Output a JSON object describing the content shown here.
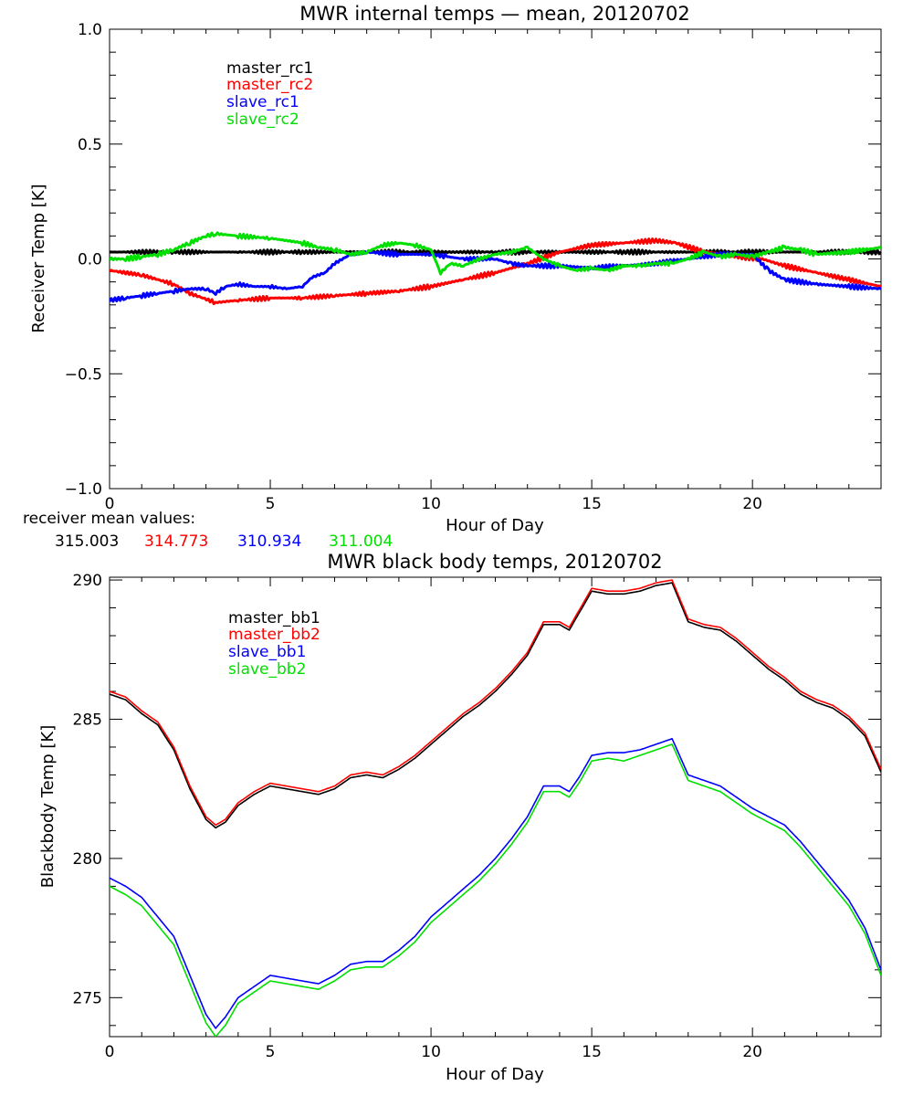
{
  "chart_data": [
    {
      "type": "line",
      "title": "MWR internal temps — mean, 20120702",
      "xlabel": "Hour of Day",
      "ylabel": "Receiver Temp [K]",
      "xlim": [
        0,
        24
      ],
      "ylim": [
        -1.0,
        1.0
      ],
      "xticks": [
        0,
        5,
        10,
        15,
        20
      ],
      "xtick_labels": [
        "0",
        "5",
        "10",
        "15",
        "20"
      ],
      "yticks": [
        -1.0,
        -0.5,
        0.0,
        0.5,
        1.0
      ],
      "ytick_labels": [
        "−1.0",
        "−0.5",
        "0.0",
        "0.5",
        "1.0"
      ],
      "grid": false,
      "legend": "top-left",
      "series": [
        {
          "name": "master_rc1",
          "color": "#000000",
          "x": [
            0,
            2,
            4,
            6,
            8,
            10,
            12,
            14,
            16,
            18,
            20,
            22,
            24
          ],
          "y": [
            0.03,
            0.03,
            0.03,
            0.03,
            0.03,
            0.03,
            0.03,
            0.03,
            0.03,
            0.03,
            0.03,
            0.03,
            0.03
          ]
        },
        {
          "name": "master_rc2",
          "color": "#ff0000",
          "x": [
            0,
            1,
            2,
            2.5,
            3.3,
            4,
            5,
            6,
            7,
            8,
            9,
            10,
            11,
            12,
            13,
            14,
            15,
            16,
            17,
            17.6,
            18.5,
            19.5,
            20.3,
            21,
            22,
            23,
            24
          ],
          "y": [
            -0.05,
            -0.07,
            -0.11,
            -0.15,
            -0.19,
            -0.18,
            -0.17,
            -0.17,
            -0.16,
            -0.15,
            -0.14,
            -0.12,
            -0.09,
            -0.06,
            -0.02,
            0.03,
            0.06,
            0.07,
            0.08,
            0.07,
            0.03,
            0.01,
            0.0,
            -0.03,
            -0.06,
            -0.09,
            -0.12
          ]
        },
        {
          "name": "slave_rc1",
          "color": "#0000ff",
          "x": [
            0,
            0.5,
            1,
            1.5,
            2,
            2.5,
            3,
            3.3,
            3.6,
            4,
            4.5,
            5,
            5.5,
            6,
            6.3,
            6.7,
            7,
            7.5,
            8,
            9,
            10,
            10.5,
            11,
            12,
            12.5,
            13,
            14,
            15,
            16,
            17,
            18,
            19,
            20,
            20.5,
            21,
            22,
            23,
            24
          ],
          "y": [
            -0.18,
            -0.17,
            -0.16,
            -0.15,
            -0.14,
            -0.13,
            -0.13,
            -0.15,
            -0.12,
            -0.11,
            -0.12,
            -0.12,
            -0.13,
            -0.12,
            -0.08,
            -0.06,
            -0.02,
            0.02,
            0.03,
            0.02,
            0.02,
            0.01,
            0.0,
            0.0,
            -0.02,
            -0.03,
            -0.03,
            -0.04,
            -0.03,
            -0.02,
            0.0,
            0.02,
            0.02,
            -0.05,
            -0.09,
            -0.11,
            -0.12,
            -0.13
          ]
        },
        {
          "name": "slave_rc2",
          "color": "#00e000",
          "x": [
            0,
            0.5,
            1,
            1.5,
            2,
            2.5,
            3,
            3.3,
            4,
            5,
            6,
            6.5,
            7,
            7.5,
            8,
            8.5,
            9,
            9.5,
            10,
            10.3,
            10.6,
            11,
            11.5,
            12,
            12.5,
            13,
            13.5,
            14,
            14.5,
            15,
            15.5,
            16,
            16.5,
            17,
            17.5,
            18,
            18.5,
            19,
            19.5,
            20,
            20.5,
            21,
            21.5,
            22,
            23,
            24
          ],
          "y": [
            0.0,
            0.0,
            0.01,
            0.02,
            0.04,
            0.07,
            0.1,
            0.11,
            0.1,
            0.09,
            0.07,
            0.05,
            0.04,
            0.02,
            0.03,
            0.06,
            0.07,
            0.06,
            0.04,
            -0.06,
            -0.02,
            -0.03,
            0.0,
            0.02,
            0.03,
            0.05,
            0.0,
            -0.03,
            -0.05,
            -0.04,
            -0.05,
            -0.03,
            -0.03,
            -0.02,
            -0.02,
            0.0,
            0.03,
            0.01,
            0.02,
            0.01,
            0.03,
            0.05,
            0.04,
            0.02,
            0.03,
            0.05
          ]
        }
      ],
      "legend_entries": [
        "master_rc1",
        "master_rc2",
        "slave_rc1",
        "slave_rc2"
      ],
      "annotation": {
        "label": "receiver mean values:",
        "values": [
          {
            "text": "315.003",
            "color": "#000000"
          },
          {
            "text": "314.773",
            "color": "#ff0000"
          },
          {
            "text": "310.934",
            "color": "#0000ff"
          },
          {
            "text": "311.004",
            "color": "#00e000"
          }
        ]
      }
    },
    {
      "type": "line",
      "title": "MWR black body temps, 20120702",
      "xlabel": "Hour of Day",
      "ylabel": "Blackbody Temp [K]",
      "xlim": [
        0,
        24
      ],
      "ylim": [
        273.6,
        290.1
      ],
      "xticks": [
        0,
        5,
        10,
        15,
        20
      ],
      "xtick_labels": [
        "0",
        "5",
        "10",
        "15",
        "20"
      ],
      "yticks": [
        275,
        280,
        285,
        290
      ],
      "ytick_labels": [
        "275",
        "280",
        "285",
        "290"
      ],
      "grid": false,
      "legend": "top-left",
      "series": [
        {
          "name": "master_bb1",
          "color": "#000000",
          "x": [
            0,
            0.5,
            1,
            1.5,
            2,
            2.5,
            3,
            3.3,
            3.6,
            4,
            4.5,
            5,
            5.5,
            6,
            6.5,
            7,
            7.5,
            8,
            8.5,
            9,
            9.5,
            10,
            10.5,
            11,
            11.5,
            12,
            12.5,
            13,
            13.5,
            14,
            14.3,
            14.6,
            15,
            15.5,
            16,
            16.5,
            17,
            17.5,
            18,
            18.5,
            19,
            19.5,
            20,
            20.5,
            21,
            21.5,
            22,
            22.5,
            23,
            23.5,
            24
          ],
          "y": [
            285.9,
            285.7,
            285.2,
            284.8,
            283.9,
            282.5,
            281.4,
            281.1,
            281.3,
            281.9,
            282.3,
            282.6,
            282.5,
            282.4,
            282.3,
            282.5,
            282.9,
            283.0,
            282.9,
            283.2,
            283.6,
            284.1,
            284.6,
            285.1,
            285.5,
            286.0,
            286.6,
            287.3,
            288.4,
            288.4,
            288.2,
            288.8,
            289.6,
            289.5,
            289.5,
            289.6,
            289.8,
            289.9,
            288.5,
            288.3,
            288.2,
            287.8,
            287.3,
            286.8,
            286.4,
            285.9,
            285.6,
            285.4,
            285.0,
            284.4,
            283.1
          ]
        },
        {
          "name": "master_bb2",
          "color": "#ff0000",
          "x": [
            0,
            0.5,
            1,
            1.5,
            2,
            2.5,
            3,
            3.3,
            3.6,
            4,
            4.5,
            5,
            5.5,
            6,
            6.5,
            7,
            7.5,
            8,
            8.5,
            9,
            9.5,
            10,
            10.5,
            11,
            11.5,
            12,
            12.5,
            13,
            13.5,
            14,
            14.3,
            14.6,
            15,
            15.5,
            16,
            16.5,
            17,
            17.5,
            18,
            18.5,
            19,
            19.5,
            20,
            20.5,
            21,
            21.5,
            22,
            22.5,
            23,
            23.5,
            24
          ],
          "y": [
            286.0,
            285.8,
            285.3,
            284.9,
            284.0,
            282.6,
            281.5,
            281.2,
            281.4,
            282.0,
            282.4,
            282.7,
            282.6,
            282.5,
            282.4,
            282.6,
            283.0,
            283.1,
            283.0,
            283.3,
            283.7,
            284.2,
            284.7,
            285.2,
            285.6,
            286.1,
            286.7,
            287.4,
            288.5,
            288.5,
            288.3,
            288.9,
            289.7,
            289.6,
            289.6,
            289.7,
            289.9,
            290.0,
            288.6,
            288.4,
            288.3,
            287.9,
            287.4,
            286.9,
            286.5,
            286.0,
            285.7,
            285.5,
            285.1,
            284.5,
            283.2
          ]
        },
        {
          "name": "slave_bb1",
          "color": "#0000ff",
          "x": [
            0,
            0.5,
            1,
            1.5,
            2,
            2.5,
            3,
            3.3,
            3.6,
            4,
            4.5,
            5,
            5.5,
            6,
            6.5,
            7,
            7.5,
            8,
            8.5,
            9,
            9.5,
            10,
            10.5,
            11,
            11.5,
            12,
            12.5,
            13,
            13.5,
            14,
            14.3,
            14.6,
            15,
            15.5,
            16,
            16.5,
            17,
            17.5,
            18,
            18.5,
            19,
            19.5,
            20,
            20.5,
            21,
            21.5,
            22,
            22.5,
            23,
            23.5,
            24
          ],
          "y": [
            279.3,
            279.0,
            278.6,
            277.9,
            277.2,
            275.8,
            274.4,
            273.9,
            274.3,
            275.0,
            275.4,
            275.8,
            275.7,
            275.6,
            275.5,
            275.8,
            276.2,
            276.3,
            276.3,
            276.7,
            277.2,
            277.9,
            278.4,
            278.9,
            279.4,
            280.0,
            280.7,
            281.5,
            282.6,
            282.6,
            282.4,
            282.9,
            283.7,
            283.8,
            283.8,
            283.9,
            284.1,
            284.3,
            283.0,
            282.8,
            282.6,
            282.2,
            281.8,
            281.5,
            281.2,
            280.6,
            279.9,
            279.2,
            278.5,
            277.5,
            276.0
          ]
        },
        {
          "name": "slave_bb2",
          "color": "#00e000",
          "x": [
            0,
            0.5,
            1,
            1.5,
            2,
            2.5,
            3,
            3.3,
            3.6,
            4,
            4.5,
            5,
            5.5,
            6,
            6.5,
            7,
            7.5,
            8,
            8.5,
            9,
            9.5,
            10,
            10.5,
            11,
            11.5,
            12,
            12.5,
            13,
            13.5,
            14,
            14.3,
            14.6,
            15,
            15.5,
            16,
            16.5,
            17,
            17.5,
            18,
            18.5,
            19,
            19.5,
            20,
            20.5,
            21,
            21.5,
            22,
            22.5,
            23,
            23.5,
            24
          ],
          "y": [
            279.0,
            278.7,
            278.3,
            277.6,
            276.9,
            275.5,
            274.1,
            273.6,
            274.0,
            274.8,
            275.2,
            275.6,
            275.5,
            275.4,
            275.3,
            275.6,
            276.0,
            276.1,
            276.1,
            276.5,
            277.0,
            277.7,
            278.2,
            278.7,
            279.2,
            279.8,
            280.5,
            281.3,
            282.4,
            282.4,
            282.2,
            282.7,
            283.5,
            283.6,
            283.5,
            283.7,
            283.9,
            284.1,
            282.8,
            282.6,
            282.4,
            282.0,
            281.6,
            281.3,
            281.0,
            280.4,
            279.7,
            279.0,
            278.3,
            277.3,
            275.8
          ]
        }
      ],
      "legend_entries": [
        "master_bb1",
        "master_bb2",
        "slave_bb1",
        "slave_bb2"
      ]
    }
  ]
}
